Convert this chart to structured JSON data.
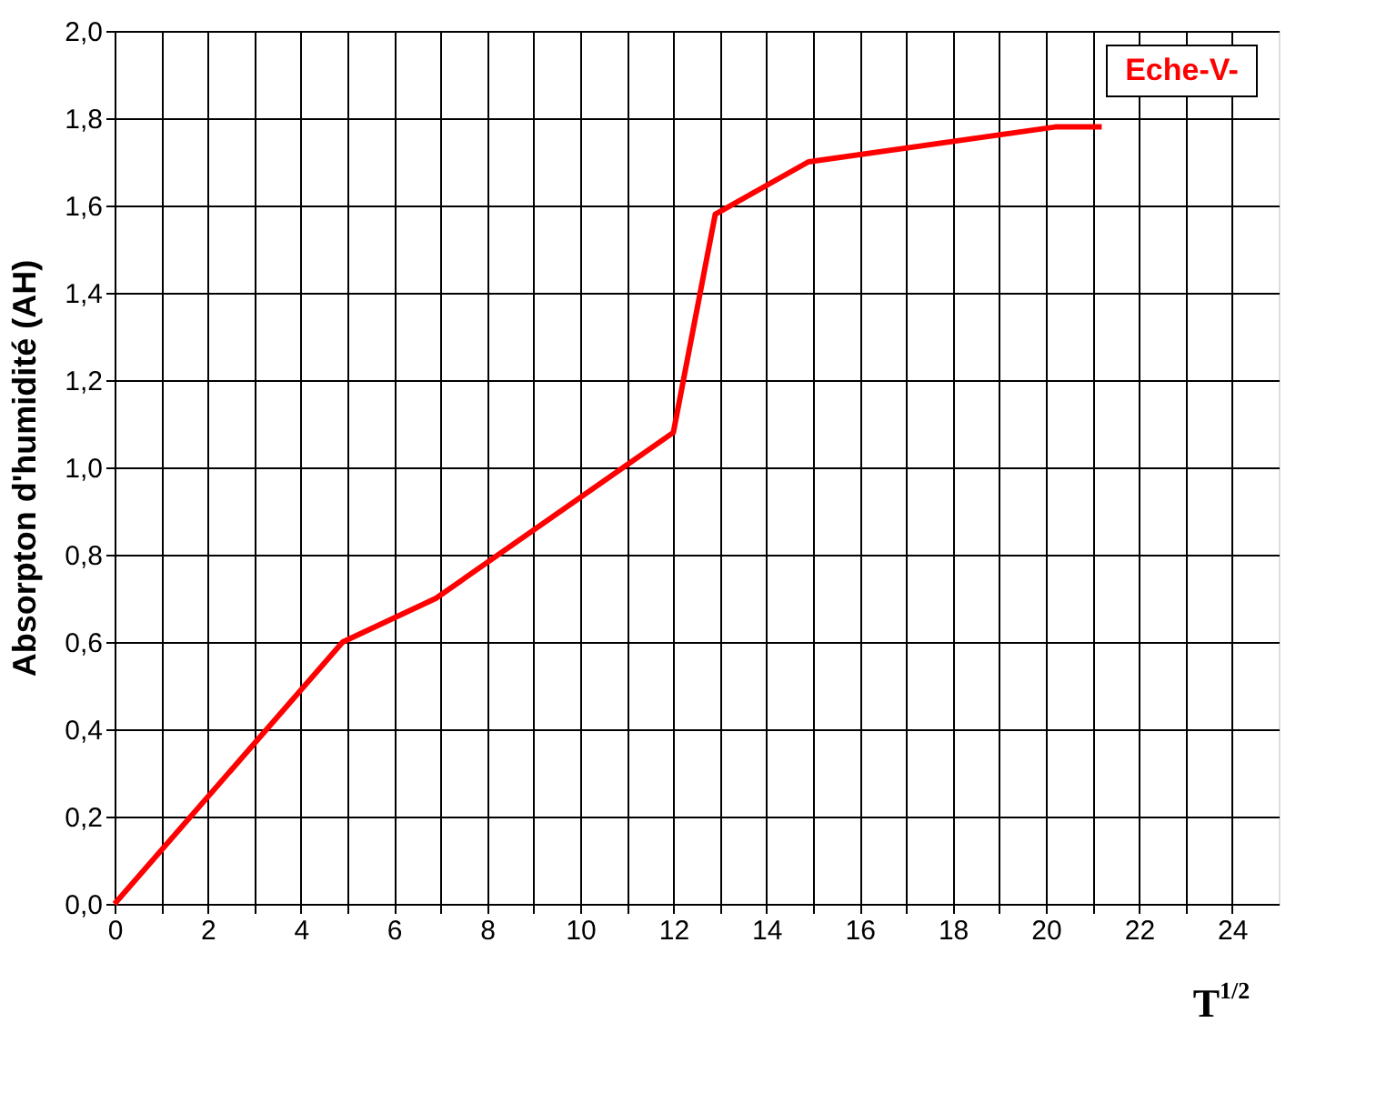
{
  "chart_data": {
    "type": "line",
    "xlabel": "T$^{1/2}$",
    "ylabel": "Absorpton d'humidité (AH)",
    "series": [
      {
        "name": "Eche-V-",
        "color": "#ff0000",
        "x": [
          0,
          4.9,
          6.9,
          12,
          12.9,
          14.9,
          20.2,
          21.2
        ],
        "values": [
          0,
          0.6,
          0.7,
          1.08,
          1.58,
          1.7,
          1.78,
          1.78
        ]
      }
    ],
    "xlim": [
      0,
      25
    ],
    "ylim": [
      0,
      2
    ],
    "xticks": [
      0,
      {
        "value": 1,
        "label": null
      },
      2,
      {
        "value": 3,
        "label": null
      },
      4,
      {
        "value": 5,
        "label": null
      },
      6,
      {
        "value": 7,
        "label": null
      },
      8,
      {
        "value": 9,
        "label": null
      },
      10,
      {
        "value": 11,
        "label": null
      },
      12,
      {
        "value": 13,
        "label": null
      },
      14,
      {
        "value": 15,
        "label": null
      },
      16,
      {
        "value": 17,
        "label": null
      },
      18,
      {
        "value": 19,
        "label": null
      },
      20,
      {
        "value": 21,
        "label": null
      },
      22,
      {
        "value": 23,
        "label": null
      },
      24
    ],
    "yticks": [
      {
        "value": 0,
        "label": "0,0"
      },
      {
        "value": 0.2,
        "label": "0,2"
      },
      {
        "value": 0.4,
        "label": "0,4"
      },
      {
        "value": 0.6,
        "label": "0,6"
      },
      {
        "value": 0.8,
        "label": "0,8"
      },
      {
        "value": 1.0,
        "label": "1,0"
      },
      {
        "value": 1.2,
        "label": "1,2"
      },
      {
        "value": 1.4,
        "label": "1,4"
      },
      {
        "value": 1.6,
        "label": "1,6"
      },
      {
        "value": 1.8,
        "label": "1,8"
      },
      {
        "value": 2.0,
        "label": "2,0"
      }
    ],
    "grid": true,
    "legend": "top right",
    "marker": "none",
    "line_style": "solid"
  }
}
